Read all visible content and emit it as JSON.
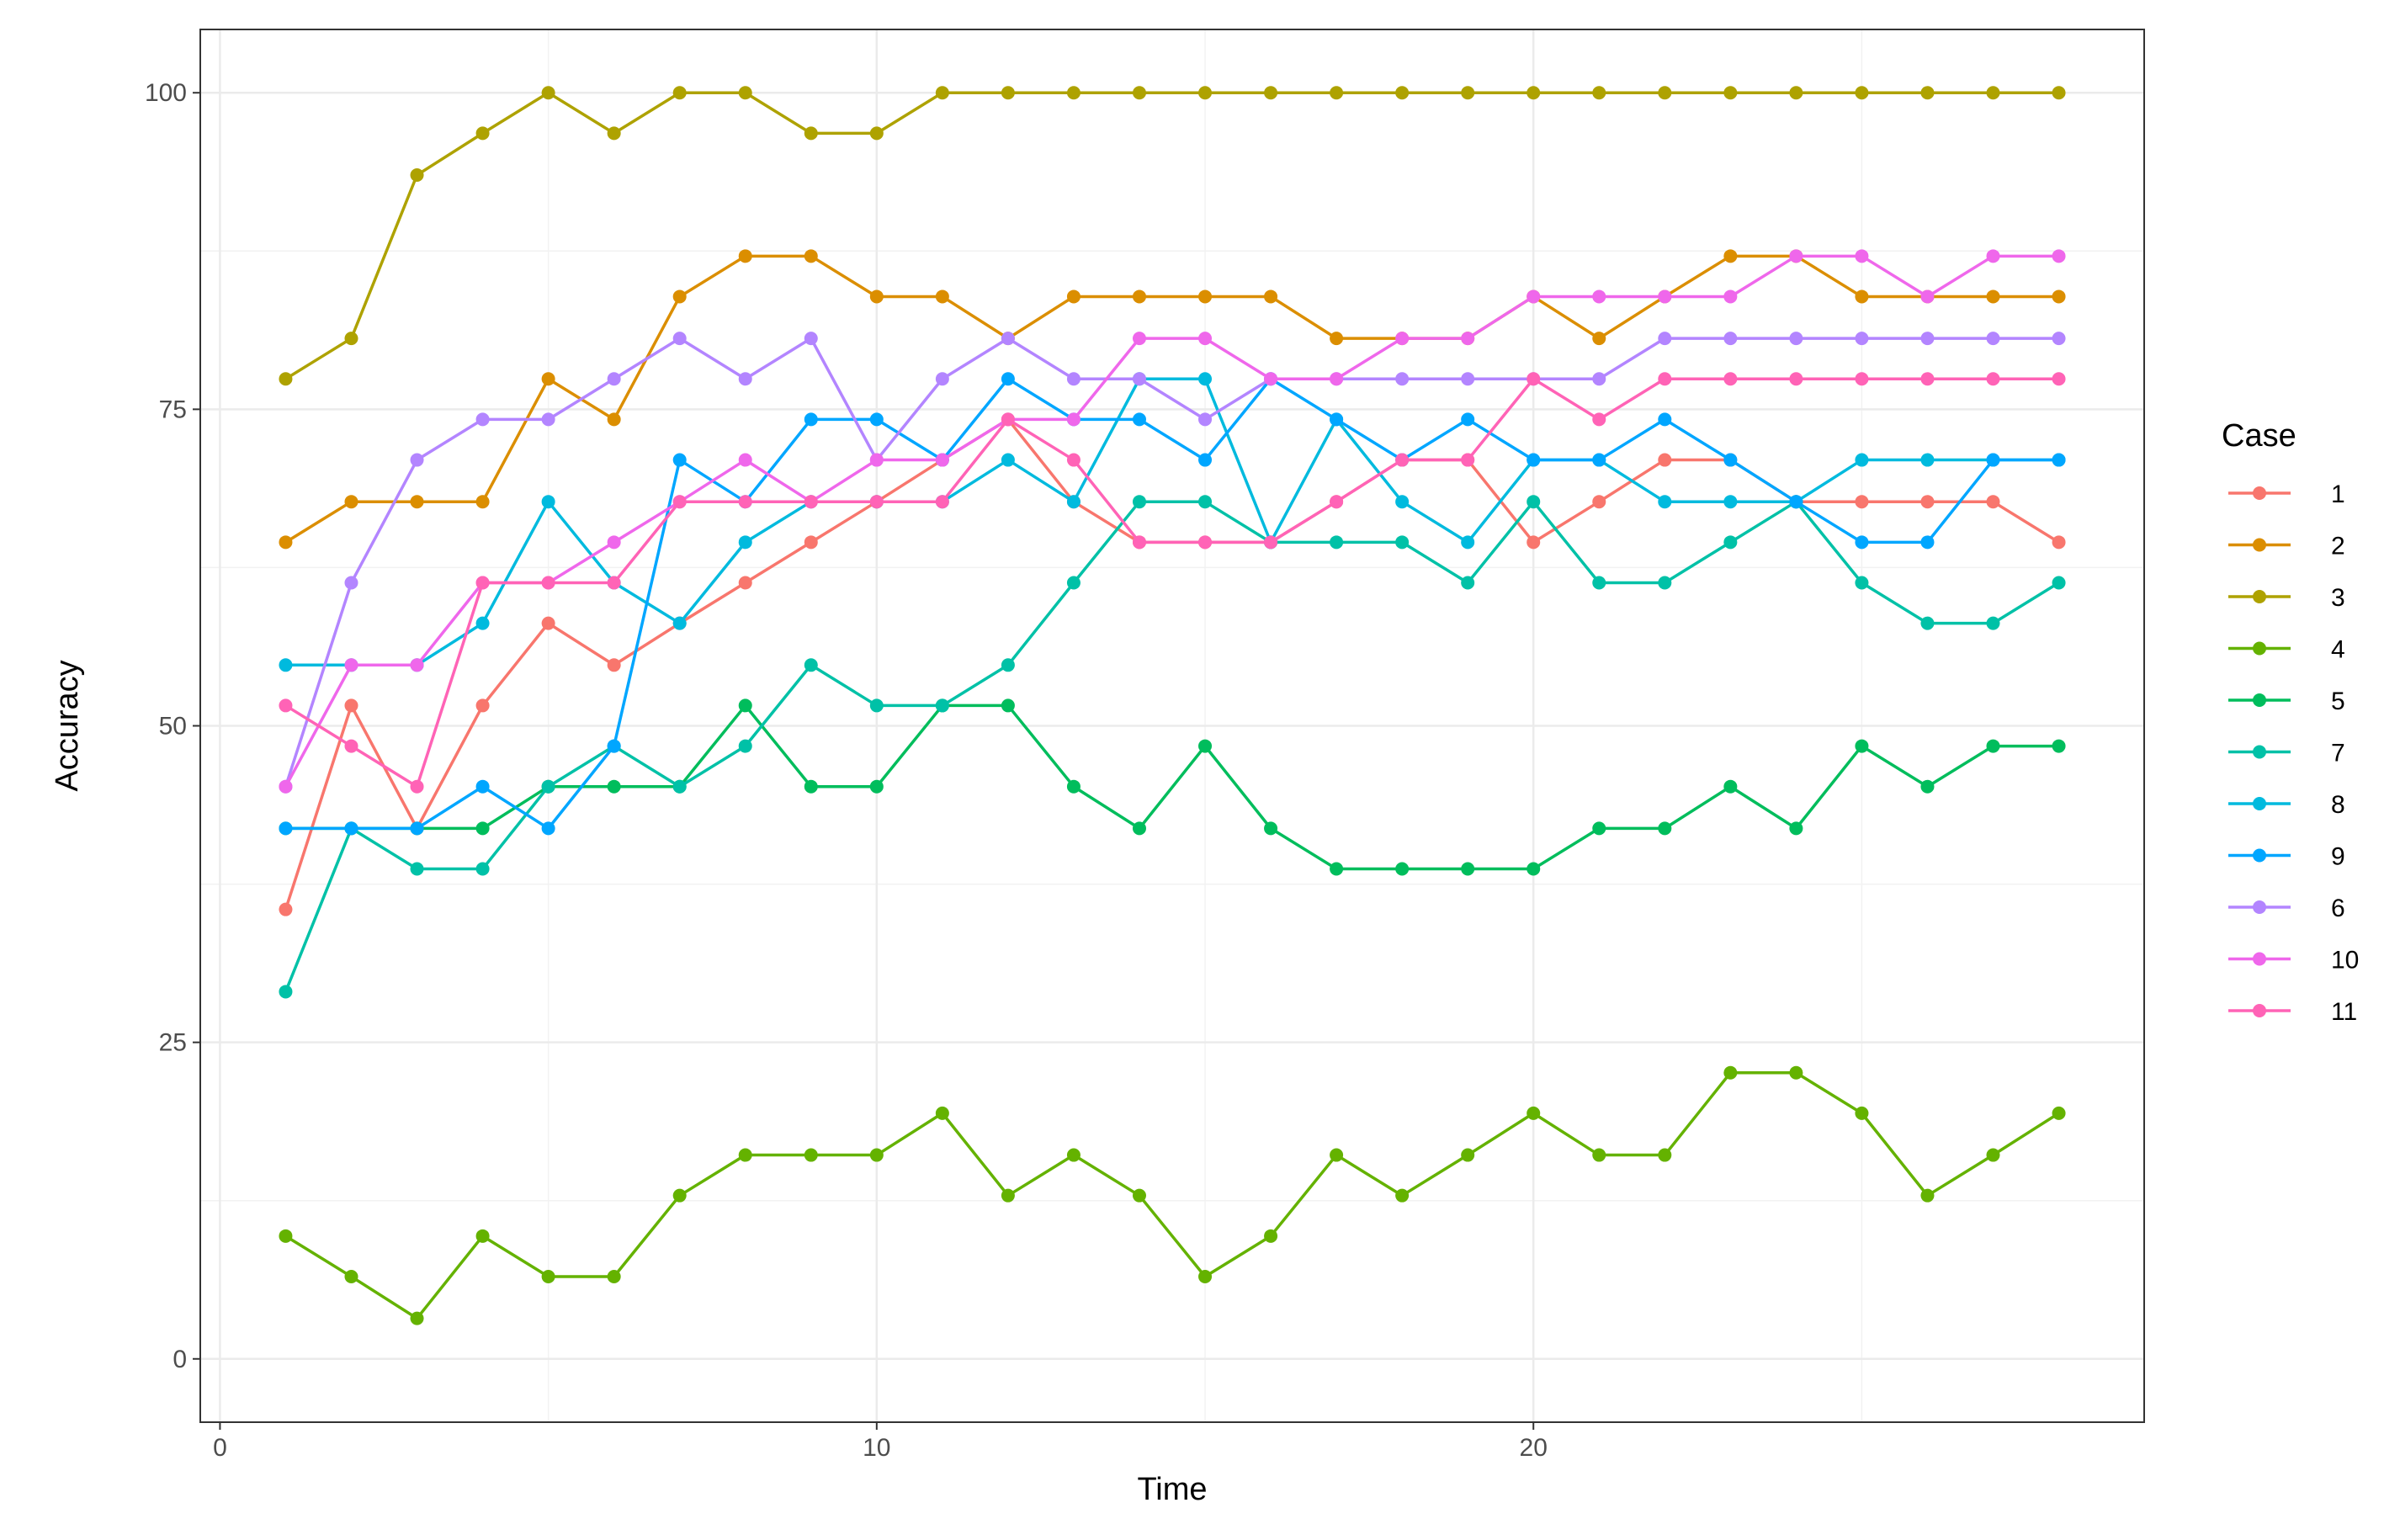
{
  "chart_data": {
    "type": "line",
    "title": "",
    "xlabel": "Time",
    "ylabel": "Accuracy",
    "xlim": [
      -0.3,
      29.3
    ],
    "ylim": [
      -5,
      105
    ],
    "x_ticks": [
      0,
      10,
      20
    ],
    "y_ticks": [
      0,
      25,
      50,
      75,
      100
    ],
    "grid": true,
    "legend": {
      "title": "Case",
      "placement": "right"
    },
    "x": [
      1,
      2,
      3,
      4,
      5,
      6,
      7,
      8,
      9,
      10,
      11,
      12,
      13,
      14,
      15,
      16,
      17,
      18,
      19,
      20,
      21,
      22,
      23,
      24,
      25,
      26,
      27,
      28
    ],
    "series": [
      {
        "name": "1",
        "color": "#F8766D",
        "values": [
          35.5,
          51.6,
          41.9,
          51.6,
          58.1,
          54.8,
          58.1,
          61.3,
          64.5,
          67.7,
          71.0,
          74.2,
          67.7,
          64.5,
          64.5,
          64.5,
          67.7,
          71.0,
          71.0,
          64.5,
          67.7,
          71.0,
          71.0,
          67.7,
          67.7,
          67.7,
          67.7,
          64.5
        ]
      },
      {
        "name": "2",
        "color": "#DB8E00",
        "values": [
          64.5,
          67.7,
          67.7,
          67.7,
          77.4,
          74.2,
          83.9,
          87.1,
          87.1,
          83.9,
          83.9,
          80.6,
          83.9,
          83.9,
          83.9,
          83.9,
          80.6,
          80.6,
          80.6,
          83.9,
          80.6,
          83.9,
          87.1,
          87.1,
          83.9,
          83.9,
          83.9,
          83.9
        ]
      },
      {
        "name": "3",
        "color": "#AEA200",
        "values": [
          77.4,
          80.6,
          93.5,
          96.8,
          100,
          96.8,
          100,
          100,
          96.8,
          96.8,
          100,
          100,
          100,
          100,
          100,
          100,
          100,
          100,
          100,
          100,
          100,
          100,
          100,
          100,
          100,
          100,
          100,
          100
        ]
      },
      {
        "name": "4",
        "color": "#64B200",
        "values": [
          9.7,
          6.5,
          3.2,
          9.7,
          6.5,
          6.5,
          12.9,
          16.1,
          16.1,
          16.1,
          19.4,
          12.9,
          16.1,
          12.9,
          6.5,
          9.7,
          16.1,
          12.9,
          16.1,
          19.4,
          16.1,
          16.1,
          22.6,
          22.6,
          19.4,
          12.9,
          16.1,
          19.4
        ]
      },
      {
        "name": "5",
        "color": "#00BD5C",
        "values": [
          41.9,
          41.9,
          41.9,
          41.9,
          45.2,
          45.2,
          45.2,
          51.6,
          45.2,
          45.2,
          51.6,
          51.6,
          45.2,
          41.9,
          48.4,
          41.9,
          38.7,
          38.7,
          38.7,
          38.7,
          41.9,
          41.9,
          45.2,
          41.9,
          48.4,
          45.2,
          48.4,
          48.4
        ]
      },
      {
        "name": "7",
        "color": "#00C1A7",
        "values": [
          29.0,
          41.9,
          38.7,
          38.7,
          45.2,
          48.4,
          45.2,
          48.4,
          54.8,
          51.6,
          51.6,
          54.8,
          61.3,
          67.7,
          67.7,
          64.5,
          64.5,
          64.5,
          61.3,
          67.7,
          61.3,
          61.3,
          64.5,
          67.7,
          61.3,
          58.1,
          58.1,
          61.3
        ]
      },
      {
        "name": "8",
        "color": "#00BADE",
        "values": [
          54.8,
          54.8,
          54.8,
          58.1,
          67.7,
          61.3,
          58.1,
          64.5,
          67.7,
          67.7,
          67.7,
          71.0,
          67.7,
          77.4,
          77.4,
          64.5,
          74.2,
          67.7,
          64.5,
          71.0,
          71.0,
          67.7,
          67.7,
          67.7,
          71.0,
          71.0,
          71.0,
          71.0
        ]
      },
      {
        "name": "9",
        "color": "#00A6FF",
        "values": [
          41.9,
          41.9,
          41.9,
          45.2,
          41.9,
          48.4,
          71.0,
          67.7,
          74.2,
          74.2,
          71.0,
          77.4,
          74.2,
          74.2,
          71.0,
          77.4,
          74.2,
          71.0,
          74.2,
          71.0,
          71.0,
          74.2,
          71.0,
          67.7,
          64.5,
          64.5,
          71.0,
          71.0
        ]
      },
      {
        "name": "6",
        "color": "#B385FF",
        "values": [
          45.2,
          61.3,
          71.0,
          74.2,
          74.2,
          77.4,
          80.6,
          77.4,
          80.6,
          71.0,
          77.4,
          80.6,
          77.4,
          77.4,
          74.2,
          77.4,
          77.4,
          77.4,
          77.4,
          77.4,
          77.4,
          80.6,
          80.6,
          80.6,
          80.6,
          80.6,
          80.6,
          80.6
        ]
      },
      {
        "name": "10",
        "color": "#EF67EB",
        "values": [
          45.2,
          54.8,
          54.8,
          61.3,
          61.3,
          64.5,
          67.7,
          71.0,
          67.7,
          71.0,
          71.0,
          74.2,
          74.2,
          80.6,
          80.6,
          77.4,
          77.4,
          80.6,
          80.6,
          83.9,
          83.9,
          83.9,
          83.9,
          87.1,
          87.1,
          83.9,
          87.1,
          87.1
        ]
      },
      {
        "name": "11",
        "color": "#FF63B6",
        "values": [
          51.6,
          48.4,
          45.2,
          61.3,
          61.3,
          61.3,
          67.7,
          67.7,
          67.7,
          67.7,
          67.7,
          74.2,
          71.0,
          64.5,
          64.5,
          64.5,
          67.7,
          71.0,
          71.0,
          77.4,
          74.2,
          77.4,
          77.4,
          77.4,
          77.4,
          77.4,
          77.4,
          77.4
        ]
      }
    ]
  }
}
